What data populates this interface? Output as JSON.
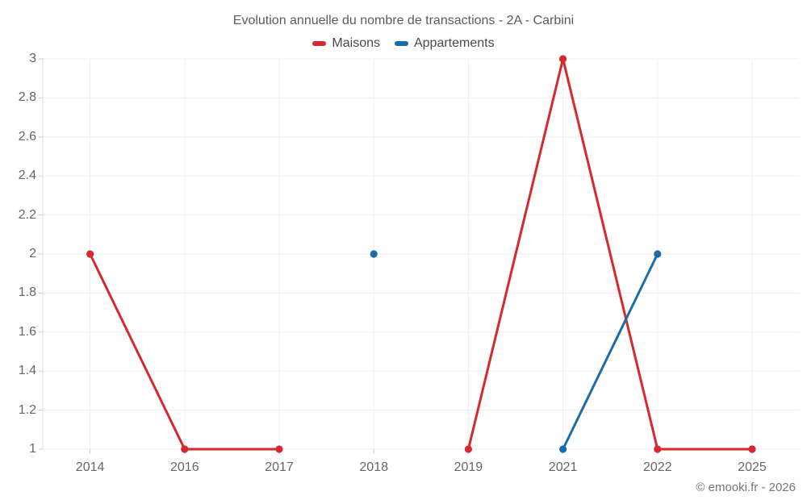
{
  "header": {
    "title": "Evolution annuelle du nombre de transactions - 2A - Carbini"
  },
  "legend": {
    "items": [
      {
        "label": "Maisons",
        "color": "#d7282f"
      },
      {
        "label": "Appartements",
        "color": "#1b6ca8"
      }
    ]
  },
  "footer": {
    "copyright": "© emooki.fr - 2026"
  },
  "chart_data": {
    "type": "line",
    "title": "Evolution annuelle du nombre de transactions - 2A - Carbini",
    "categories": [
      "2014",
      "2016",
      "2017",
      "2018",
      "2019",
      "2021",
      "2022",
      "2025"
    ],
    "series": [
      {
        "name": "Maisons",
        "color": "#d7282f",
        "values": [
          2,
          1,
          1,
          null,
          1,
          3,
          1,
          1
        ]
      },
      {
        "name": "Appartements",
        "color": "#1b6ca8",
        "values": [
          null,
          null,
          null,
          2,
          null,
          1,
          2,
          null
        ]
      }
    ],
    "xlabel": "",
    "ylabel": "",
    "ylim": [
      1,
      3
    ],
    "yticks": [
      "1",
      "1.2",
      "1.4",
      "1.6",
      "1.8",
      "2",
      "2.2",
      "2.4",
      "2.6",
      "2.8",
      "3"
    ],
    "grid": true,
    "legend_position": "top",
    "colors": {
      "gridline": "#ededed",
      "axis_line": "#e0e0e0",
      "tick": "#cccccc",
      "background": "#ffffff"
    }
  }
}
